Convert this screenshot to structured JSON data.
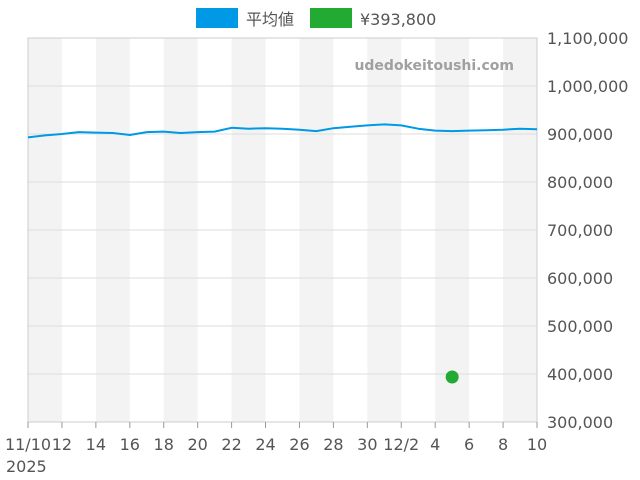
{
  "legend": {
    "items": [
      {
        "label": "平均値",
        "color": "#0099e5"
      },
      {
        "label": "¥393,800",
        "color": "#22aa33"
      }
    ]
  },
  "watermark": "udedokeitoushi.com",
  "chart_data": {
    "type": "line",
    "title": "",
    "xlabel": "",
    "ylabel": "",
    "ylim": [
      300000,
      1100000
    ],
    "y_ticks": [
      300000,
      400000,
      500000,
      600000,
      700000,
      800000,
      900000,
      1000000,
      1100000
    ],
    "y_tick_labels": [
      "300,000",
      "400,000",
      "500,000",
      "600,000",
      "700,000",
      "800,000",
      "900,000",
      "1,000,000",
      "1,100,000"
    ],
    "y_axis_side": "right",
    "x_tick_labels": [
      "11/10",
      "12",
      "14",
      "16",
      "18",
      "20",
      "22",
      "24",
      "26",
      "28",
      "30",
      "12/2",
      "4",
      "6",
      "8",
      "10"
    ],
    "x_tick_days": [
      0,
      2,
      4,
      6,
      8,
      10,
      12,
      14,
      16,
      18,
      20,
      22,
      24,
      26,
      28,
      30
    ],
    "x_year_label": "2025",
    "x_range_days": [
      0,
      30
    ],
    "grid": true,
    "alternating_bands": true,
    "legend_position": "top-center",
    "series": [
      {
        "name": "平均値",
        "color": "#0099e5",
        "x": [
          0,
          1,
          2,
          3,
          4,
          5,
          6,
          7,
          8,
          9,
          10,
          11,
          12,
          13,
          14,
          15,
          16,
          17,
          18,
          19,
          20,
          21,
          22,
          23,
          24,
          25,
          26,
          27,
          28,
          29,
          30
        ],
        "values": [
          893000,
          897000,
          900000,
          904000,
          903000,
          902000,
          898000,
          904000,
          905000,
          902000,
          904000,
          905000,
          913000,
          911000,
          912000,
          911000,
          909000,
          906000,
          912000,
          915000,
          918000,
          920000,
          918000,
          911000,
          907000,
          906000,
          907000,
          908000,
          909000,
          911000,
          910000
        ]
      },
      {
        "name": "¥393,800",
        "color": "#22aa33",
        "type": "scatter",
        "x": [
          25
        ],
        "values": [
          393800
        ]
      }
    ]
  }
}
